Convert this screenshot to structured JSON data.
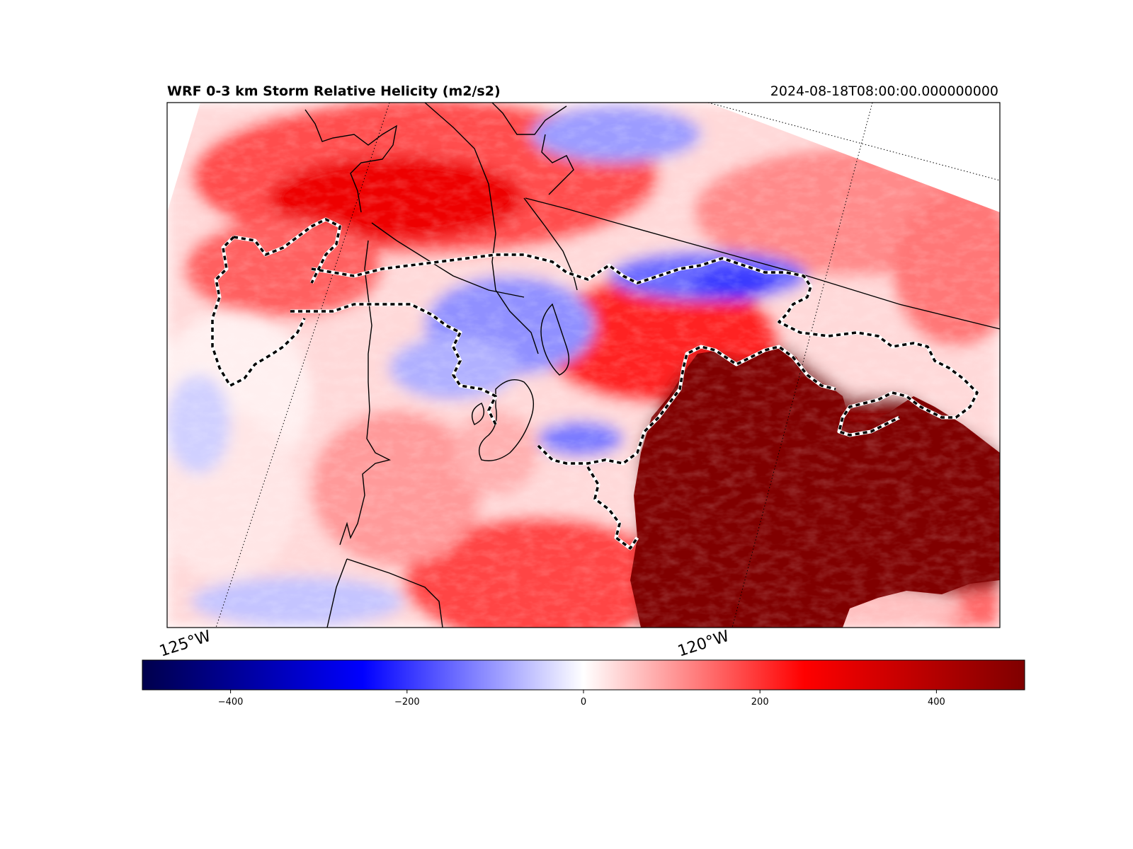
{
  "header": {
    "title": "WRF 0-3 km Storm Relative Helicity (m2/s2)",
    "valid_time": "2024-08-18T08:00:00.000000000"
  },
  "map": {
    "variable": "0-3 km Storm Relative Helicity",
    "units": "m2/s2",
    "colormap": "seismic",
    "longitude_labels": [
      "125°W",
      "120°W"
    ],
    "contour_style": "dashed black/white highlight contour",
    "coastline_color": "#000000"
  },
  "colorbar": {
    "vmin": -500,
    "vmax": 500,
    "ticks": [
      -400,
      -200,
      0,
      200,
      400
    ],
    "tick_labels": [
      "−400",
      "−200",
      "0",
      "200",
      "400"
    ],
    "stops": [
      "#00004c",
      "#0000ff",
      "#ffffff",
      "#ff0000",
      "#7f0000"
    ]
  }
}
